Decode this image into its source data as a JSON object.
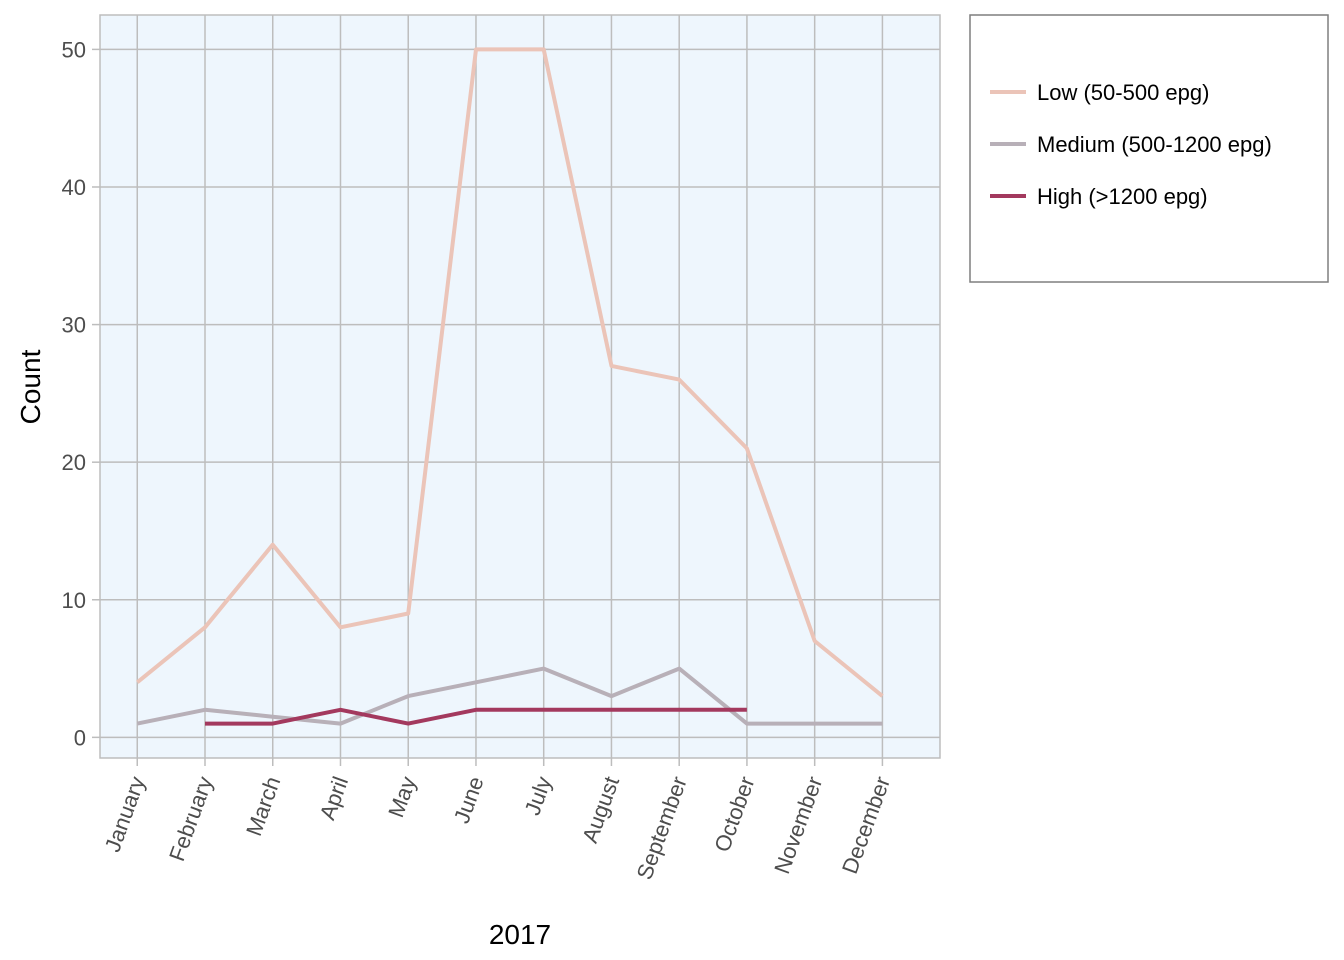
{
  "chart_data": {
    "type": "line",
    "xlabel": "2017",
    "ylabel": "Count",
    "categories": [
      "January",
      "February",
      "March",
      "April",
      "May",
      "June",
      "July",
      "August",
      "September",
      "October",
      "November",
      "December"
    ],
    "ylim": [
      -1.5,
      52.5
    ],
    "yticks": [
      0,
      10,
      20,
      30,
      40,
      50
    ],
    "grid": true,
    "legend_position": "right",
    "series": [
      {
        "name": "Low (50-500 epg)",
        "color": "#ebc4b8",
        "values": [
          4,
          8,
          14,
          8,
          9,
          50,
          50,
          27,
          26,
          21,
          7,
          3
        ]
      },
      {
        "name": "Medium (500-1200 epg)",
        "color": "#b8b0b8",
        "values": [
          1,
          2,
          1.5,
          1,
          3,
          4,
          5,
          3,
          5,
          1,
          1,
          1
        ]
      },
      {
        "name": "High (>1200 epg)",
        "color": "#a3395e",
        "values": [
          null,
          1,
          1,
          2,
          1,
          2,
          2,
          2,
          2,
          2,
          null,
          null
        ]
      }
    ],
    "colors": {
      "panel_background": "#eef6fd",
      "grid": "#bdbdbd"
    }
  }
}
